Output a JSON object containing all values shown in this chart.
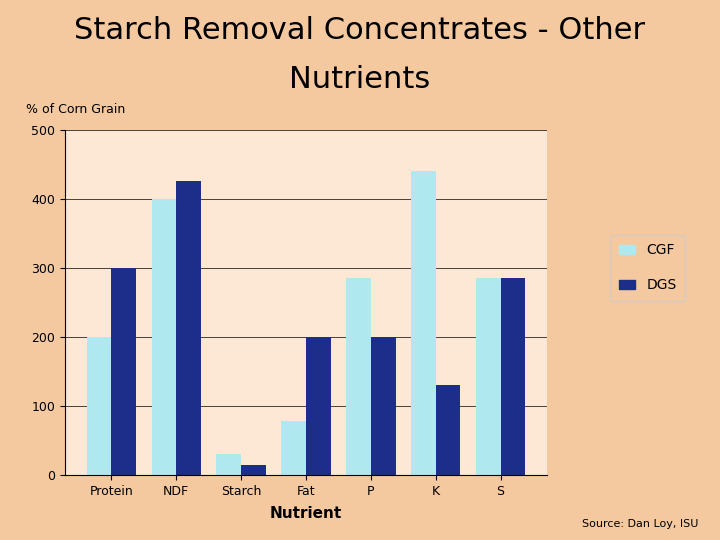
{
  "title_line1": "Starch Removal Concentrates - Other",
  "title_line2": "Nutrients",
  "categories": [
    "Protein",
    "NDF",
    "Starch",
    "Fat",
    "P",
    "K",
    "S"
  ],
  "CGF": [
    200,
    400,
    30,
    78,
    285,
    440,
    285
  ],
  "DGS": [
    300,
    425,
    15,
    200,
    200,
    130,
    285
  ],
  "cgf_color": "#b0e8f0",
  "dgs_color": "#1c2e8a",
  "ylabel": "% of Corn Grain",
  "xlabel": "Nutrient",
  "ylim": [
    0,
    500
  ],
  "yticks": [
    0,
    100,
    200,
    300,
    400,
    500
  ],
  "background_color": "#f5c9a0",
  "plot_bg_color": "#fce8d4",
  "title_fontsize": 22,
  "axis_label_fontsize": 9,
  "tick_fontsize": 9,
  "legend_labels": [
    "CGF",
    "DGS"
  ],
  "source_text": "Source: Dan Loy, ISU",
  "bar_width": 0.38
}
